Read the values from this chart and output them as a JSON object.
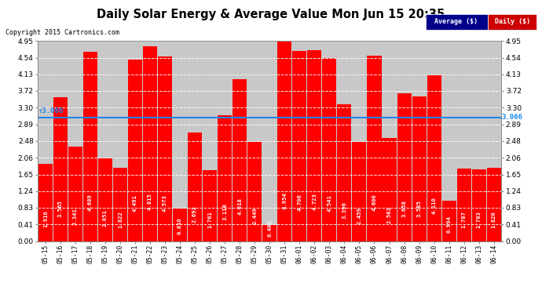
{
  "title": "Daily Solar Energy & Average Value Mon Jun 15 20:35",
  "copyright": "Copyright 2015 Cartronics.com",
  "average_value": 3.066,
  "bar_color": "#FF0000",
  "average_line_color": "#1C86EE",
  "categories": [
    "05-15",
    "05-16",
    "05-17",
    "05-18",
    "05-19",
    "05-20",
    "05-21",
    "05-22",
    "05-23",
    "05-24",
    "05-25",
    "05-26",
    "05-27",
    "05-28",
    "05-29",
    "05-30",
    "05-31",
    "06-01",
    "06-02",
    "06-03",
    "06-04",
    "06-05",
    "06-06",
    "06-07",
    "06-08",
    "06-09",
    "06-10",
    "06-11",
    "06-12",
    "06-13",
    "06-14"
  ],
  "values": [
    1.91,
    3.565,
    2.341,
    4.689,
    2.051,
    1.822,
    4.491,
    4.815,
    4.573,
    0.81,
    2.692,
    1.761,
    3.118,
    4.018,
    2.449,
    0.401,
    4.954,
    4.706,
    4.723,
    4.541,
    3.396,
    2.459,
    4.6,
    2.561,
    3.658,
    3.585,
    4.11,
    0.994,
    1.787,
    1.783,
    1.82
  ],
  "ylim": [
    0.0,
    4.95
  ],
  "yticks": [
    0.0,
    0.41,
    0.83,
    1.24,
    1.65,
    2.06,
    2.48,
    2.89,
    3.3,
    3.72,
    4.13,
    4.54,
    4.95
  ],
  "background_color": "#FFFFFF",
  "plot_bg_color": "#C8C8C8",
  "grid_color": "#FFFFFF",
  "legend_avg_color": "#00008B",
  "legend_daily_color": "#CC0000",
  "avg_label": "3.066"
}
